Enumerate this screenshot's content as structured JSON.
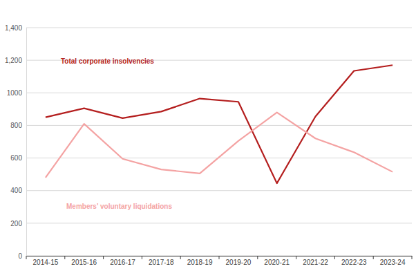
{
  "chart_data": {
    "type": "line",
    "categories": [
      "2014-15",
      "2015-16",
      "2016-17",
      "2017-18",
      "2018-19",
      "2019-20",
      "2020-21",
      "2021-22",
      "2022-23",
      "2023-24"
    ],
    "series": [
      {
        "name": "Total corporate insolvencies",
        "color": "#b41e1e",
        "values": [
          850,
          905,
          845,
          885,
          965,
          945,
          445,
          855,
          1135,
          1170
        ]
      },
      {
        "name": "Members' voluntary liquidations",
        "color": "#f4a3a3",
        "values": [
          480,
          810,
          595,
          530,
          505,
          705,
          880,
          720,
          635,
          515
        ]
      }
    ],
    "ylim": [
      0,
      1400
    ],
    "yticks": [
      0,
      200,
      400,
      600,
      800,
      1000,
      {
        "value": 1200,
        "label": "1,200"
      },
      {
        "value": 1400,
        "label": "1,400"
      }
    ],
    "grid": true
  }
}
